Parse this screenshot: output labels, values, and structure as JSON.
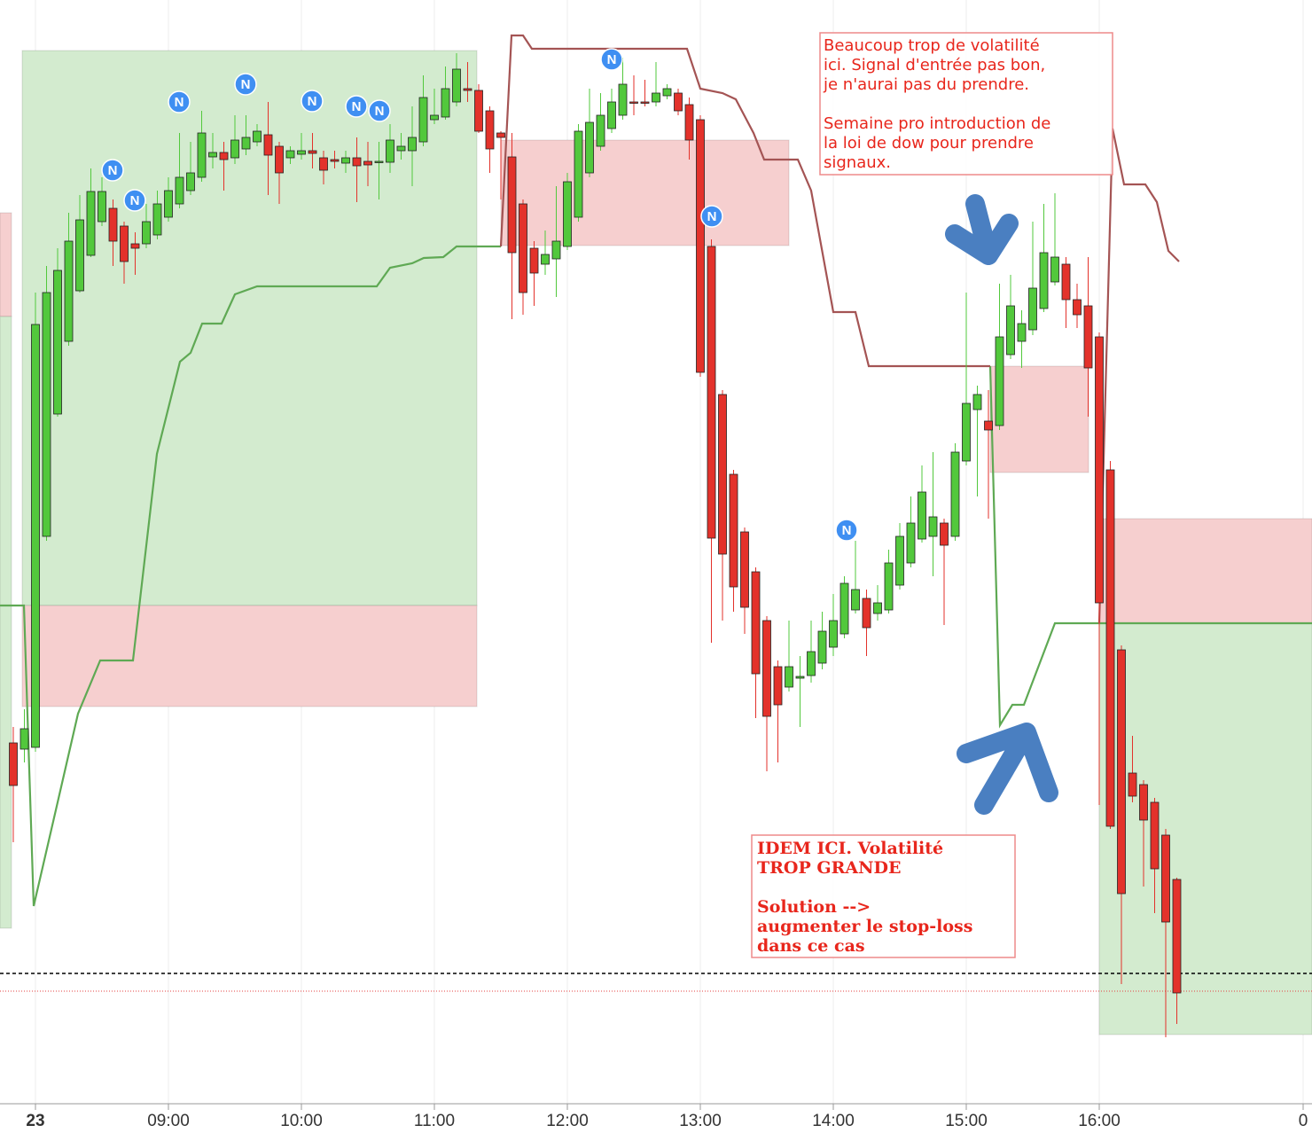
{
  "chart_data": {
    "type": "candlestick",
    "xlim": [
      -1.2,
      117.2
    ],
    "ylim": [
      0,
      1250
    ],
    "xticks": [
      {
        "value": 2,
        "label": "23"
      },
      {
        "value": 14,
        "label": "09:00"
      },
      {
        "value": 26,
        "label": "10:00"
      },
      {
        "value": 38,
        "label": "11:00"
      },
      {
        "value": 50,
        "label": "12:00"
      },
      {
        "value": 62,
        "label": "13:00"
      },
      {
        "value": 74,
        "label": "14:00"
      },
      {
        "value": 86,
        "label": "15:00"
      },
      {
        "value": 98,
        "label": "16:00"
      },
      {
        "value": 116.4,
        "label": "0"
      }
    ],
    "grid": true,
    "up_color": "#52c83c",
    "down_color": "#e3322b",
    "x": [
      0,
      1,
      2,
      3,
      4,
      5,
      6,
      7,
      8,
      9,
      10,
      11,
      12,
      13,
      14,
      15,
      16,
      17,
      18,
      19,
      20,
      21,
      22,
      23,
      24,
      25,
      26,
      27,
      28,
      29,
      30,
      31,
      32,
      33,
      34,
      35,
      36,
      37,
      38,
      39,
      40,
      41,
      42,
      43,
      44,
      45,
      46,
      47,
      48,
      49,
      50,
      51,
      52,
      53,
      54,
      55,
      56,
      57,
      58,
      59,
      60,
      61,
      62,
      63,
      64,
      65,
      66,
      67,
      68,
      69,
      70,
      71,
      72,
      73,
      74,
      75,
      76,
      77,
      78,
      79,
      80,
      81,
      82,
      83,
      84,
      85,
      86,
      87,
      88,
      89,
      90,
      91,
      92,
      93,
      94,
      95,
      96,
      97,
      98,
      99,
      100,
      101,
      102,
      103,
      104,
      105
    ],
    "open": [
      412,
      405,
      407,
      645,
      783,
      865,
      922,
      962,
      1000,
      1015,
      995,
      975,
      975,
      985,
      1005,
      1020,
      1035,
      1050,
      1073,
      1078,
      1072,
      1082,
      1090,
      1098,
      1085,
      1072,
      1076,
      1080,
      1072,
      1070,
      1066,
      1072,
      1068,
      1067,
      1067,
      1080,
      1080,
      1090,
      1115,
      1118,
      1135,
      1150,
      1148,
      1125,
      1100,
      1073,
      1020,
      970,
      952,
      958,
      972,
      1005,
      1055,
      1085,
      1105,
      1120,
      1135,
      1135,
      1135,
      1142,
      1145,
      1132,
      1115,
      972,
      805,
      715,
      650,
      605,
      550,
      498,
      475,
      485,
      488,
      502,
      520,
      535,
      562,
      575,
      558,
      562,
      590,
      615,
      642,
      645,
      660,
      645,
      730,
      788,
      775,
      770,
      850,
      865,
      878,
      902,
      932,
      952,
      912,
      905,
      870,
      720,
      517,
      378,
      365,
      345,
      308,
      258
    ],
    "high": [
      430,
      450,
      920,
      950,
      970,
      1010,
      1030,
      1060,
      1050,
      1025,
      1000,
      988,
      1020,
      1035,
      1050,
      1100,
      1090,
      1125,
      1100,
      1090,
      1120,
      1120,
      1110,
      1135,
      1090,
      1085,
      1100,
      1100,
      1080,
      1080,
      1080,
      1095,
      1090,
      1090,
      1110,
      1100,
      1130,
      1165,
      1150,
      1175,
      1190,
      1180,
      1155,
      1130,
      1102,
      1100,
      1025,
      978,
      990,
      1040,
      1055,
      1110,
      1150,
      1145,
      1150,
      1185,
      1165,
      1160,
      1180,
      1155,
      1150,
      1140,
      1120,
      980,
      810,
      720,
      655,
      610,
      555,
      505,
      550,
      510,
      550,
      560,
      580,
      600,
      640,
      585,
      590,
      630,
      660,
      690,
      725,
      740,
      665,
      750,
      920,
      815,
      810,
      930,
      940,
      900,
      1000,
      1020,
      1032,
      960,
      930,
      960,
      875,
      730,
      522,
      420,
      370,
      350,
      315,
      260
    ],
    "low": [
      300,
      390,
      402,
      640,
      780,
      860,
      920,
      960,
      995,
      950,
      930,
      940,
      970,
      980,
      1000,
      1015,
      1030,
      1045,
      1060,
      1035,
      1065,
      1075,
      1085,
      1030,
      1020,
      1065,
      1070,
      1060,
      1042,
      1060,
      1055,
      1022,
      1040,
      1025,
      1055,
      1070,
      1040,
      1085,
      1110,
      1115,
      1130,
      1135,
      1100,
      1055,
      1025,
      890,
      895,
      905,
      940,
      915,
      968,
      1000,
      1050,
      1080,
      1100,
      1115,
      1120,
      1130,
      1130,
      1138,
      1120,
      1070,
      825,
      525,
      550,
      560,
      535,
      440,
      380,
      390,
      470,
      430,
      480,
      495,
      510,
      530,
      558,
      510,
      550,
      558,
      585,
      610,
      638,
      600,
      545,
      640,
      725,
      690,
      665,
      765,
      845,
      835,
      872,
      898,
      928,
      880,
      880,
      780,
      342,
      315,
      140,
      345,
      250,
      220,
      80,
      95
    ],
    "close": [
      364,
      428,
      884,
      920,
      945,
      978,
      1002,
      1034,
      1034,
      978,
      955,
      970,
      1000,
      1020,
      1035,
      1050,
      1055,
      1100,
      1078,
      1070,
      1092,
      1095,
      1102,
      1075,
      1055,
      1080,
      1080,
      1077,
      1058,
      1068,
      1072,
      1063,
      1064,
      1068,
      1092,
      1085,
      1095,
      1140,
      1120,
      1150,
      1172,
      1148,
      1102,
      1082,
      1095,
      965,
      920,
      942,
      963,
      978,
      1045,
      1102,
      1112,
      1120,
      1135,
      1155,
      1134,
      1134,
      1145,
      1150,
      1125,
      1092,
      830,
      643,
      625,
      588,
      565,
      490,
      442,
      455,
      498,
      487,
      515,
      538,
      550,
      592,
      585,
      542,
      570,
      615,
      645,
      660,
      695,
      667,
      635,
      740,
      795,
      805,
      765,
      870,
      905,
      885,
      925,
      965,
      960,
      912,
      895,
      835,
      570,
      318,
      242,
      352,
      325,
      270,
      210,
      130
    ],
    "zones": [
      {
        "x": [
          0.8,
          41.84
        ],
        "y": [
          567,
          1193
        ],
        "color": "#d3ebcf"
      },
      {
        "x": [
          0.8,
          41.84
        ],
        "y": [
          453,
          567
        ],
        "color": "#f6cfcf"
      },
      {
        "x": [
          -1.2,
          -0.16
        ],
        "y": [
          893,
          1010
        ],
        "color": "#f6cfcf"
      },
      {
        "x": [
          -1.2,
          -0.16
        ],
        "y": [
          203,
          893
        ],
        "color": "#d3ebcf"
      },
      {
        "x": [
          44,
          70
        ],
        "y": [
          973,
          1092
        ],
        "color": "#f6cfcf"
      },
      {
        "x": [
          88.16,
          97.04
        ],
        "y": [
          717,
          837
        ],
        "color": "#f6cfcf"
      },
      {
        "x": [
          98,
          117.2
        ],
        "y": [
          547,
          665
        ],
        "color": "#f6cfcf"
      },
      {
        "x": [
          98,
          117.2
        ],
        "y": [
          83,
          547
        ],
        "color": "#d3ebcf"
      }
    ],
    "lines": [
      {
        "color": "#5fa954",
        "x": [
          -1.2,
          0.96,
          1.84,
          4,
          5.84,
          7.84,
          10.8,
          12.96,
          15.04,
          16,
          17.04,
          18.8,
          20,
          22,
          32.8,
          34,
          36,
          37.04,
          38.8,
          40,
          44,
          null,
          88.16,
          89.04,
          90.16,
          91.2,
          94,
          117.2
        ],
        "values": [
          567,
          567,
          228,
          345,
          445,
          505,
          505,
          738,
          842,
          852,
          885,
          885,
          918,
          927,
          927,
          948,
          953,
          959,
          960,
          972,
          972,
          null,
          837,
          432,
          455,
          455,
          547,
          547
        ]
      },
      {
        "color": "#a45454",
        "x": [
          44,
          44.96,
          46,
          46.8,
          60.8,
          62,
          64,
          65.2,
          66.8,
          67.76,
          70.8,
          72,
          74,
          76,
          77.2,
          88.16,
          null,
          98,
          99.2,
          100.24,
          102.16,
          103.2,
          104.24,
          105.2
        ],
        "values": [
          972,
          1210,
          1210,
          1195,
          1195,
          1150,
          1145,
          1138,
          1100,
          1070,
          1070,
          1035,
          898,
          898,
          837,
          837,
          null,
          547,
          1105,
          1042,
          1042,
          1022,
          967,
          955
        ]
      }
    ],
    "hlines": [
      {
        "value": 152,
        "color": "#000000",
        "style": "dashed"
      },
      {
        "value": 132,
        "color": "#e34040",
        "style": "dotted"
      }
    ],
    "markers": {
      "label": "N",
      "color": "#3f8ff2",
      "x": [
        8.96,
        10.96,
        14.96,
        20.96,
        26.96,
        30.96,
        33.04,
        54,
        63.04,
        75.2
      ],
      "y": [
        1058,
        1024,
        1135,
        1155,
        1136,
        1130,
        1125,
        1183,
        1006,
        652
      ]
    },
    "annotations": [
      {
        "paragraphs": [
          [
            "Beaucoup trop de volatilité",
            "ici. Signal d'entrée pas bon,",
            "je n'aurai pas du prendre."
          ],
          [
            "Semaine pro introduction de",
            "la loi de dow pour prendre",
            "signaux."
          ]
        ]
      },
      {
        "paragraphs": [
          [
            "IDEM ICI. Volatilité",
            "TROP GRANDE"
          ],
          [
            "Solution -->",
            "augmenter le stop-loss",
            "dans ce cas"
          ]
        ]
      }
    ]
  }
}
